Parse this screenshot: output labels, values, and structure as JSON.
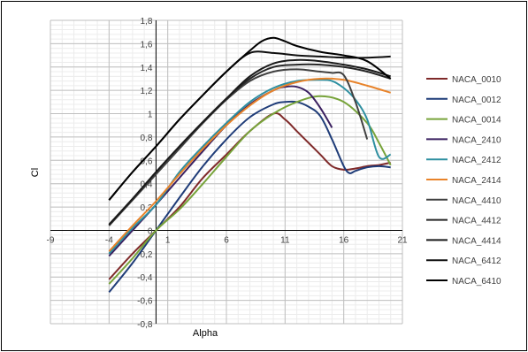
{
  "chart_data": {
    "type": "line",
    "xlabel": "Alpha",
    "ylabel": "Cl",
    "xlim": [
      -9,
      21
    ],
    "ylim": [
      -0.8,
      1.8
    ],
    "x_ticks": [
      -9,
      -4,
      1,
      6,
      11,
      16,
      21
    ],
    "x_tick_labels": [
      "-9",
      "-4",
      "1",
      "6",
      "11",
      "16",
      "21"
    ],
    "y_ticks": [
      -0.8,
      -0.6,
      -0.4,
      -0.2,
      0,
      0.2,
      0.4,
      0.6,
      0.8,
      1,
      1.2,
      1.4,
      1.6,
      1.8
    ],
    "y_tick_labels": [
      "-0,8",
      "-0,6",
      "-0,4",
      "-0,2",
      "0",
      "0,2",
      "0,4",
      "0,6",
      "0,8",
      "1",
      "1,2",
      "1,4",
      "1,6",
      "1,8"
    ],
    "grid": true,
    "minor_grid": true,
    "legend_position": "right",
    "series": [
      {
        "name": "NACA_0010",
        "color": "#7f2a2a",
        "x": [
          -4,
          -2,
          0,
          2,
          4,
          6,
          8,
          10,
          11,
          12,
          13,
          14,
          15,
          16,
          17,
          18,
          19,
          20
        ],
        "y": [
          -0.42,
          -0.2,
          0.0,
          0.2,
          0.45,
          0.65,
          0.85,
          1.0,
          0.95,
          0.85,
          0.75,
          0.65,
          0.55,
          0.52,
          0.53,
          0.55,
          0.56,
          0.58
        ]
      },
      {
        "name": "NACA_0012",
        "color": "#1f3c78",
        "x": [
          -4,
          -2,
          0,
          2,
          4,
          6,
          8,
          10,
          11,
          12,
          13,
          14,
          15,
          16,
          16.5,
          17,
          18,
          19,
          20
        ],
        "y": [
          -0.53,
          -0.28,
          0.0,
          0.28,
          0.55,
          0.78,
          0.97,
          1.08,
          1.1,
          1.1,
          1.06,
          0.98,
          0.78,
          0.55,
          0.49,
          0.51,
          0.54,
          0.55,
          0.54
        ]
      },
      {
        "name": "NACA_0014",
        "color": "#77a33a",
        "x": [
          -4,
          -2,
          0,
          2,
          4,
          6,
          8,
          10,
          12,
          14,
          16,
          18,
          19,
          20
        ],
        "y": [
          -0.46,
          -0.24,
          0.0,
          0.18,
          0.4,
          0.63,
          0.85,
          1.0,
          1.1,
          1.15,
          1.1,
          0.92,
          0.75,
          0.56
        ]
      },
      {
        "name": "NACA_2410",
        "color": "#3a2060",
        "x": [
          -4,
          -2,
          0,
          2,
          4,
          6,
          8,
          10,
          11,
          12,
          13,
          14,
          15
        ],
        "y": [
          -0.22,
          0.0,
          0.22,
          0.45,
          0.68,
          0.9,
          1.08,
          1.2,
          1.23,
          1.23,
          1.18,
          1.05,
          0.88
        ]
      },
      {
        "name": "NACA_2412",
        "color": "#2e8fa0",
        "x": [
          -4,
          -2,
          0,
          2,
          4,
          6,
          8,
          10,
          12,
          14,
          15,
          16,
          17,
          18,
          19,
          20
        ],
        "y": [
          -0.2,
          0.02,
          0.22,
          0.5,
          0.72,
          0.92,
          1.1,
          1.22,
          1.28,
          1.29,
          1.28,
          1.22,
          1.12,
          0.95,
          0.63,
          0.65
        ]
      },
      {
        "name": "NACA_2414",
        "color": "#e8832a",
        "x": [
          -4,
          -2,
          0,
          2,
          4,
          6,
          8,
          10,
          12,
          14,
          16,
          18,
          20
        ],
        "y": [
          -0.18,
          0.04,
          0.25,
          0.48,
          0.7,
          0.9,
          1.07,
          1.2,
          1.27,
          1.3,
          1.29,
          1.24,
          1.18
        ]
      },
      {
        "name": "NACA_4410",
        "color": "#404040",
        "x": [
          -4,
          -2,
          0,
          2,
          4,
          6,
          8,
          10,
          12,
          14,
          15,
          16,
          17,
          18
        ],
        "y": [
          0.04,
          0.26,
          0.48,
          0.7,
          0.92,
          1.12,
          1.28,
          1.36,
          1.38,
          1.36,
          1.35,
          1.33,
          1.1,
          0.78
        ]
      },
      {
        "name": "NACA_4412",
        "color": "#262626",
        "x": [
          -4,
          -2,
          0,
          2,
          4,
          6,
          8,
          10,
          12,
          14,
          16,
          18,
          20
        ],
        "y": [
          0.05,
          0.27,
          0.5,
          0.72,
          0.93,
          1.13,
          1.3,
          1.4,
          1.42,
          1.42,
          1.4,
          1.36,
          1.3
        ]
      },
      {
        "name": "NACA_4414",
        "color": "#1a1a1a",
        "x": [
          -4,
          -2,
          0,
          2,
          4,
          6,
          8,
          10,
          12,
          14,
          16,
          18,
          20
        ],
        "y": [
          0.05,
          0.27,
          0.5,
          0.72,
          0.93,
          1.13,
          1.32,
          1.43,
          1.46,
          1.45,
          1.42,
          1.38,
          1.32
        ]
      },
      {
        "name": "NACA_6412",
        "color": "#0f0f0f",
        "x": [
          -4,
          -2,
          0,
          2,
          4,
          6,
          8,
          10,
          12,
          14,
          16,
          18,
          20
        ],
        "y": [
          0.26,
          0.5,
          0.72,
          0.95,
          1.16,
          1.36,
          1.52,
          1.52,
          1.5,
          1.49,
          1.48,
          1.48,
          1.49
        ]
      },
      {
        "name": "NACA_6410",
        "color": "#000000",
        "x": [
          -4,
          -2,
          0,
          2,
          4,
          6,
          8,
          9,
          10,
          11,
          12,
          14,
          16,
          18,
          20
        ],
        "y": [
          0.26,
          0.5,
          0.72,
          0.95,
          1.16,
          1.36,
          1.54,
          1.62,
          1.65,
          1.62,
          1.58,
          1.53,
          1.5,
          1.45,
          1.3
        ]
      }
    ]
  }
}
